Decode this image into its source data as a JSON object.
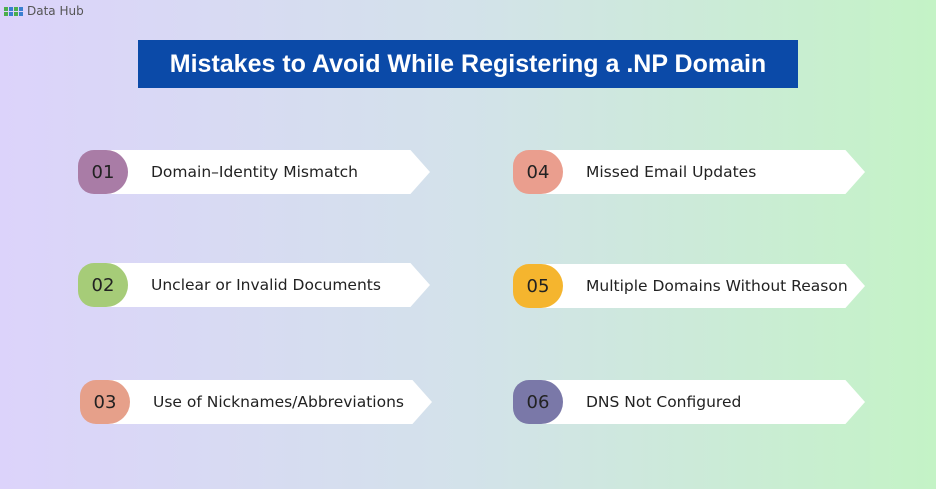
{
  "logo": {
    "text": "Data Hub"
  },
  "title": "Mistakes to Avoid While Registering a .NP Domain",
  "items": [
    {
      "num": "01",
      "label": "Domain–Identity Mismatch",
      "color": "#a97ca6"
    },
    {
      "num": "02",
      "label": "Unclear or Invalid Documents",
      "color": "#a6cc78"
    },
    {
      "num": "03",
      "label": "Use of Nicknames/Abbreviations",
      "color": "#e6a08a"
    },
    {
      "num": "04",
      "label": "Missed Email Updates",
      "color": "#ea9e8e"
    },
    {
      "num": "05",
      "label": "Multiple Domains Without Reason",
      "color": "#f5b52e"
    },
    {
      "num": "06",
      "label": "DNS Not Configured",
      "color": "#7a78a8"
    }
  ]
}
